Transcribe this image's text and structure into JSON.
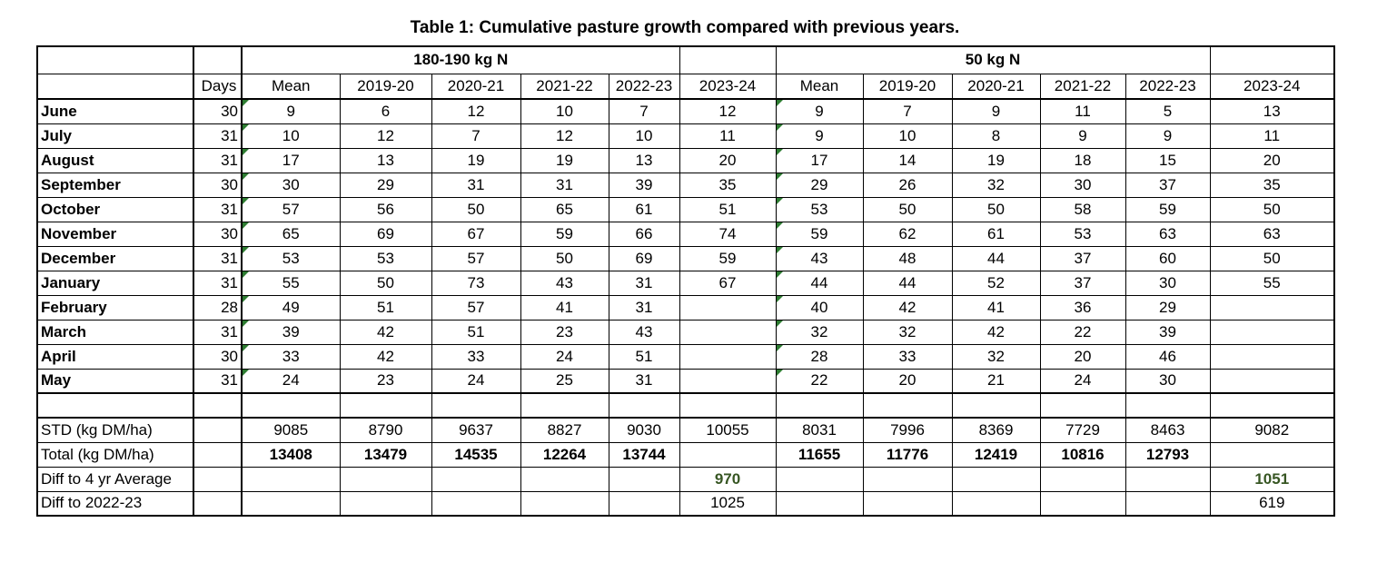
{
  "title": "Table 1: Cumulative pasture growth compared with previous years.",
  "colors": {
    "triangle_green": "#2e7d32",
    "diff_green": "#375623",
    "border_black": "#000000"
  },
  "table": {
    "group1_label": "180-190 kg N",
    "group2_label": "50 kg N",
    "days_header": "Days",
    "year_headers": [
      "Mean",
      "2019-20",
      "2020-21",
      "2021-22",
      "2022-23",
      "2023-24"
    ],
    "month_rows": [
      {
        "label": "June",
        "days": "30",
        "g1": [
          "9",
          "6",
          "12",
          "10",
          "7",
          "12"
        ],
        "g2": [
          "9",
          "7",
          "9",
          "11",
          "5",
          "13"
        ]
      },
      {
        "label": "July",
        "days": "31",
        "g1": [
          "10",
          "12",
          "7",
          "12",
          "10",
          "11"
        ],
        "g2": [
          "9",
          "10",
          "8",
          "9",
          "9",
          "11"
        ]
      },
      {
        "label": "August",
        "days": "31",
        "g1": [
          "17",
          "13",
          "19",
          "19",
          "13",
          "20"
        ],
        "g2": [
          "17",
          "14",
          "19",
          "18",
          "15",
          "20"
        ]
      },
      {
        "label": "September",
        "days": "30",
        "g1": [
          "30",
          "29",
          "31",
          "31",
          "39",
          "35"
        ],
        "g2": [
          "29",
          "26",
          "32",
          "30",
          "37",
          "35"
        ]
      },
      {
        "label": "October",
        "days": "31",
        "g1": [
          "57",
          "56",
          "50",
          "65",
          "61",
          "51"
        ],
        "g2": [
          "53",
          "50",
          "50",
          "58",
          "59",
          "50"
        ]
      },
      {
        "label": "November",
        "days": "30",
        "g1": [
          "65",
          "69",
          "67",
          "59",
          "66",
          "74"
        ],
        "g2": [
          "59",
          "62",
          "61",
          "53",
          "63",
          "63"
        ]
      },
      {
        "label": "December",
        "days": "31",
        "g1": [
          "53",
          "53",
          "57",
          "50",
          "69",
          "59"
        ],
        "g2": [
          "43",
          "48",
          "44",
          "37",
          "60",
          "50"
        ]
      },
      {
        "label": "January",
        "days": "31",
        "g1": [
          "55",
          "50",
          "73",
          "43",
          "31",
          "67"
        ],
        "g2": [
          "44",
          "44",
          "52",
          "37",
          "30",
          "55"
        ]
      },
      {
        "label": "February",
        "days": "28",
        "g1": [
          "49",
          "51",
          "57",
          "41",
          "31",
          ""
        ],
        "g2": [
          "40",
          "42",
          "41",
          "36",
          "29",
          ""
        ]
      },
      {
        "label": "March",
        "days": "31",
        "g1": [
          "39",
          "42",
          "51",
          "23",
          "43",
          ""
        ],
        "g2": [
          "32",
          "32",
          "42",
          "22",
          "39",
          ""
        ]
      },
      {
        "label": "April",
        "days": "30",
        "g1": [
          "33",
          "42",
          "33",
          "24",
          "51",
          ""
        ],
        "g2": [
          "28",
          "33",
          "32",
          "20",
          "46",
          ""
        ]
      },
      {
        "label": "May",
        "days": "31",
        "g1": [
          "24",
          "23",
          "24",
          "25",
          "31",
          ""
        ],
        "g2": [
          "22",
          "20",
          "21",
          "24",
          "30",
          ""
        ]
      }
    ],
    "stat_rows": [
      {
        "label": "STD (kg DM/ha)",
        "bold": false,
        "green": false,
        "g1": [
          "9085",
          "8790",
          "9637",
          "8827",
          "9030",
          "10055"
        ],
        "g2": [
          "8031",
          "7996",
          "8369",
          "7729",
          "8463",
          "9082"
        ]
      },
      {
        "label": "Total (kg DM/ha)",
        "bold": true,
        "green": false,
        "g1": [
          "13408",
          "13479",
          "14535",
          "12264",
          "13744",
          ""
        ],
        "g2": [
          "11655",
          "11776",
          "12419",
          "10816",
          "12793",
          ""
        ]
      },
      {
        "label": "Diff to 4 yr Average",
        "bold": true,
        "green": true,
        "g1": [
          "",
          "",
          "",
          "",
          "",
          "970"
        ],
        "g2": [
          "",
          "",
          "",
          "",
          "",
          "1051"
        ]
      },
      {
        "label": "Diff to 2022-23",
        "bold": false,
        "green": false,
        "g1": [
          "",
          "",
          "",
          "",
          "",
          "1025"
        ],
        "g2": [
          "",
          "",
          "",
          "",
          "",
          "619"
        ]
      }
    ]
  }
}
